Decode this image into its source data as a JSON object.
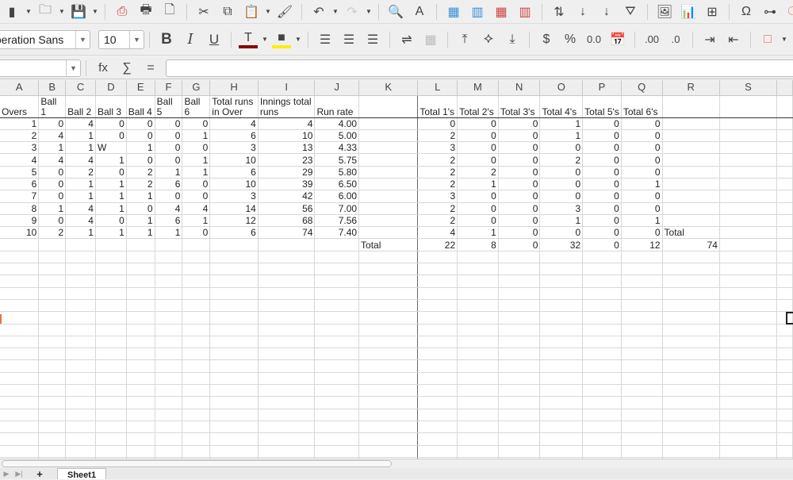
{
  "toolbar1": [
    {
      "name": "new-icon",
      "glyph": "▮",
      "dd": true
    },
    {
      "name": "open-icon",
      "glyph": "🗀",
      "dd": true
    },
    {
      "name": "save-icon",
      "glyph": "💾",
      "dd": true
    },
    {
      "sep": true
    },
    {
      "name": "export-pdf-icon",
      "glyph": "⎙",
      "color": "#d33"
    },
    {
      "name": "print-icon",
      "glyph": "🖶"
    },
    {
      "name": "print-preview-icon",
      "glyph": "🗋"
    },
    {
      "sep": true
    },
    {
      "name": "cut-icon",
      "glyph": "✂"
    },
    {
      "name": "copy-icon",
      "glyph": "⧉"
    },
    {
      "name": "paste-icon",
      "glyph": "📋",
      "dd": true,
      "color": "#bbb"
    },
    {
      "name": "clone-formatting-icon",
      "glyph": "🖌"
    },
    {
      "sep": true
    },
    {
      "name": "undo-icon",
      "glyph": "↶",
      "dd": true
    },
    {
      "name": "redo-icon",
      "glyph": "↷",
      "dd": true,
      "color": "#ccc"
    },
    {
      "sep": true
    },
    {
      "name": "find-replace-icon",
      "glyph": "🔍"
    },
    {
      "name": "spelling-icon",
      "glyph": "A"
    },
    {
      "sep": true
    },
    {
      "name": "row-icon",
      "glyph": "▦",
      "color": "#3a8fd8"
    },
    {
      "name": "column-icon",
      "glyph": "▥",
      "color": "#3a8fd8"
    },
    {
      "name": "delete-row-icon",
      "glyph": "▦",
      "color": "#c44"
    },
    {
      "name": "delete-column-icon",
      "glyph": "▥",
      "color": "#c44"
    },
    {
      "sep": true
    },
    {
      "name": "sort-icon",
      "glyph": "⇅"
    },
    {
      "name": "sort-ascending-icon",
      "glyph": "↓"
    },
    {
      "name": "sort-descending-icon",
      "glyph": "↓"
    },
    {
      "name": "autofilter-icon",
      "glyph": "⛛"
    },
    {
      "sep": true
    },
    {
      "name": "image-icon",
      "glyph": "🖼"
    },
    {
      "name": "chart-icon",
      "glyph": "📊"
    },
    {
      "name": "pivot-table-icon",
      "glyph": "⊞"
    },
    {
      "sep": true
    },
    {
      "name": "special-character-icon",
      "glyph": "Ω"
    },
    {
      "name": "hyperlink-icon",
      "glyph": "⊶"
    },
    {
      "name": "comment-icon",
      "glyph": "🗨",
      "color": "#e8714a"
    },
    {
      "name": "headers-footers-icon",
      "glyph": "▭",
      "color": "#3a8fd8"
    }
  ],
  "font": {
    "name": "Liberation Sans",
    "size": "10"
  },
  "toolbar2": [
    {
      "name": "bold-icon",
      "glyph": "B",
      "bold": true
    },
    {
      "name": "italic-icon",
      "glyph": "I",
      "italic": true
    },
    {
      "name": "underline-icon",
      "glyph": "U",
      "underline": true
    },
    {
      "sep": true
    },
    {
      "name": "font-color-icon",
      "glyph": "T",
      "dd": true,
      "bar": "#8b0000"
    },
    {
      "name": "highlight-color-icon",
      "glyph": "■",
      "dd": true,
      "bar": "#ffee00"
    },
    {
      "sep": true
    },
    {
      "name": "align-left-icon",
      "glyph": "☰"
    },
    {
      "name": "align-center-icon",
      "glyph": "☰"
    },
    {
      "name": "align-right-icon",
      "glyph": "☰"
    },
    {
      "sep": true
    },
    {
      "name": "wrap-text-icon",
      "glyph": "⇌"
    },
    {
      "name": "merge-cells-icon",
      "glyph": "▦",
      "color": "#bbb"
    },
    {
      "sep": true
    },
    {
      "name": "align-top-icon",
      "glyph": "⤒"
    },
    {
      "name": "center-vertically-icon",
      "glyph": "⯎"
    },
    {
      "name": "align-bottom-icon",
      "glyph": "⤓"
    },
    {
      "sep": true
    },
    {
      "name": "currency-icon",
      "glyph": "$"
    },
    {
      "name": "percent-icon",
      "glyph": "%"
    },
    {
      "name": "number-format-icon",
      "glyph": "0.0"
    },
    {
      "name": "date-icon",
      "glyph": "📅"
    },
    {
      "sep": true
    },
    {
      "name": "add-decimal-icon",
      "glyph": ".00"
    },
    {
      "name": "delete-decimal-icon",
      "glyph": ".0"
    },
    {
      "sep": true
    },
    {
      "name": "increase-indent-icon",
      "glyph": "⇥"
    },
    {
      "name": "decrease-indent-icon",
      "glyph": "⇤"
    },
    {
      "sep": true
    },
    {
      "name": "borders-icon",
      "glyph": "□",
      "dd": true,
      "color": "#e8714a"
    },
    {
      "name": "border-style-icon",
      "glyph": "≡",
      "dd": true
    }
  ],
  "formula_bar": {
    "name_box": "",
    "function_wizard": "fx",
    "sum": "∑",
    "equals": "=",
    "content": ""
  },
  "columns": [
    "A",
    "B",
    "C",
    "D",
    "E",
    "F",
    "G",
    "H",
    "I",
    "J",
    "K",
    "L",
    "M",
    "N",
    "O",
    "P",
    "Q",
    "R",
    "S",
    ""
  ],
  "header_row": [
    "Overs",
    "Ball 1",
    "Ball 2",
    "Ball 3",
    "Ball 4",
    "Ball 5",
    "Ball 6",
    "Total runs in Over",
    "Innings total runs",
    "Run rate",
    "",
    "Total 1's",
    "Total 2's",
    "Total 3's",
    "Total 4's",
    "Total 5's",
    "Total 6's",
    "",
    ""
  ],
  "rows": [
    [
      "1",
      "0",
      "4",
      "0",
      "0",
      "0",
      "0",
      "4",
      "4",
      "4.00",
      "",
      "0",
      "0",
      "0",
      "1",
      "0",
      "0",
      "",
      ""
    ],
    [
      "2",
      "4",
      "1",
      "0",
      "0",
      "0",
      "1",
      "6",
      "10",
      "5.00",
      "",
      "2",
      "0",
      "0",
      "1",
      "0",
      "0",
      "",
      ""
    ],
    [
      "3",
      "1",
      "1",
      "W",
      "1",
      "0",
      "0",
      "3",
      "13",
      "4.33",
      "",
      "3",
      "0",
      "0",
      "0",
      "0",
      "0",
      "",
      ""
    ],
    [
      "4",
      "4",
      "4",
      "1",
      "0",
      "0",
      "1",
      "10",
      "23",
      "5.75",
      "",
      "2",
      "0",
      "0",
      "2",
      "0",
      "0",
      "",
      ""
    ],
    [
      "5",
      "0",
      "2",
      "0",
      "2",
      "1",
      "1",
      "6",
      "29",
      "5.80",
      "",
      "2",
      "2",
      "0",
      "0",
      "0",
      "0",
      "",
      ""
    ],
    [
      "6",
      "0",
      "1",
      "1",
      "2",
      "6",
      "0",
      "10",
      "39",
      "6.50",
      "",
      "2",
      "1",
      "0",
      "0",
      "0",
      "1",
      "",
      ""
    ],
    [
      "7",
      "0",
      "1",
      "1",
      "1",
      "0",
      "0",
      "3",
      "42",
      "6.00",
      "",
      "3",
      "0",
      "0",
      "0",
      "0",
      "0",
      "",
      ""
    ],
    [
      "8",
      "1",
      "4",
      "1",
      "0",
      "4",
      "4",
      "14",
      "56",
      "7.00",
      "",
      "2",
      "0",
      "0",
      "3",
      "0",
      "0",
      "",
      ""
    ],
    [
      "9",
      "0",
      "4",
      "0",
      "1",
      "6",
      "1",
      "12",
      "68",
      "7.56",
      "",
      "2",
      "0",
      "0",
      "1",
      "0",
      "1",
      "",
      ""
    ],
    [
      "10",
      "2",
      "1",
      "1",
      "1",
      "1",
      "0",
      "6",
      "74",
      "7.40",
      "",
      "4",
      "1",
      "0",
      "0",
      "0",
      "0",
      "Total",
      ""
    ],
    [
      "",
      "",
      "",
      "",
      "",
      "",
      "",
      "",
      "",
      "",
      "Total",
      "22",
      "8",
      "0",
      "32",
      "0",
      "12",
      "74",
      ""
    ]
  ],
  "sheet_tabs": [
    {
      "label": "Sheet1",
      "active": true
    }
  ],
  "add_sheet": "+"
}
